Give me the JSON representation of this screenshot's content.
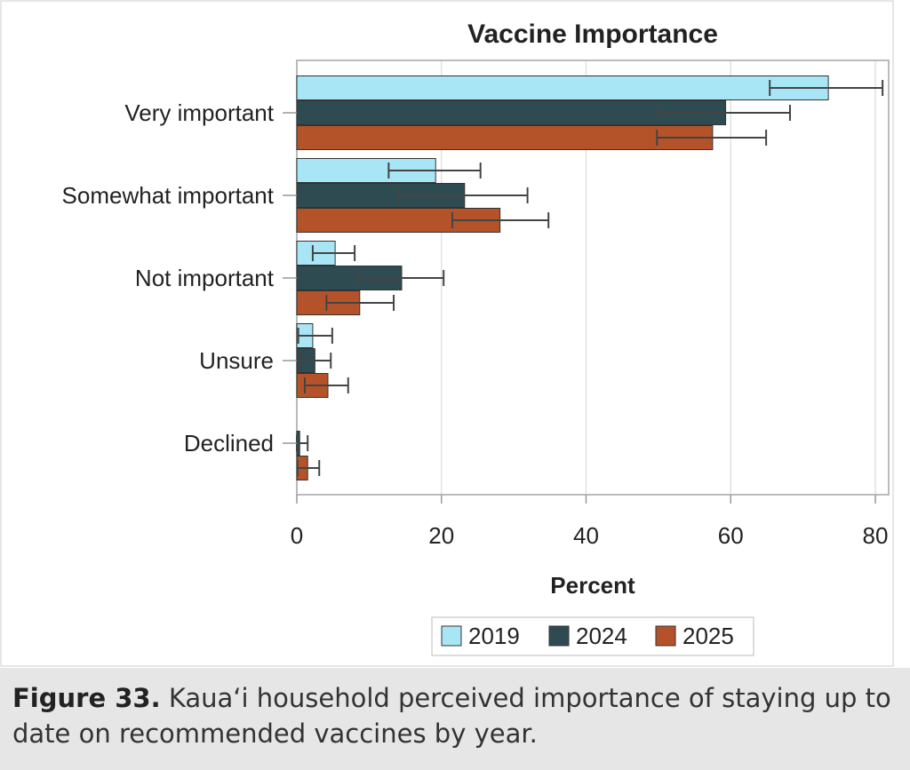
{
  "chart_data": {
    "type": "bar",
    "orientation": "horizontal",
    "title": "Vaccine Importance",
    "xlabel": "Percent",
    "ylabel": "",
    "xlim": [
      0,
      80
    ],
    "xticks": [
      0,
      20,
      40,
      60,
      80
    ],
    "grid": true,
    "legend_position": "bottom",
    "categories": [
      "Very important",
      "Somewhat important",
      "Not important",
      "Unsure",
      "Declined"
    ],
    "series": [
      {
        "name": "2019",
        "color": "#a8e6f5",
        "values": [
          73.5,
          19.2,
          5.3,
          2.2,
          0
        ],
        "ci_low": [
          65.4,
          12.7,
          2.2,
          0.2,
          0
        ],
        "ci_high": [
          81.0,
          25.4,
          8.0,
          4.9,
          0
        ]
      },
      {
        "name": "2024",
        "color": "#2f4b52",
        "values": [
          59.3,
          23.2,
          14.5,
          2.5,
          0.4
        ],
        "ci_low": [
          50.1,
          14.1,
          8.5,
          0.5,
          0.0
        ],
        "ci_high": [
          68.2,
          31.9,
          20.3,
          4.7,
          1.5
        ]
      },
      {
        "name": "2025",
        "color": "#b4532a",
        "values": [
          57.5,
          28.1,
          8.7,
          4.3,
          1.5
        ],
        "ci_low": [
          49.8,
          21.5,
          4.1,
          1.1,
          0.1
        ],
        "ci_high": [
          64.9,
          34.8,
          13.4,
          7.1,
          3.1
        ]
      }
    ]
  },
  "caption": {
    "label": "Figure 33.",
    "text": " Kauaʻi household perceived importance of staying up to date on recommended vaccines by year."
  }
}
